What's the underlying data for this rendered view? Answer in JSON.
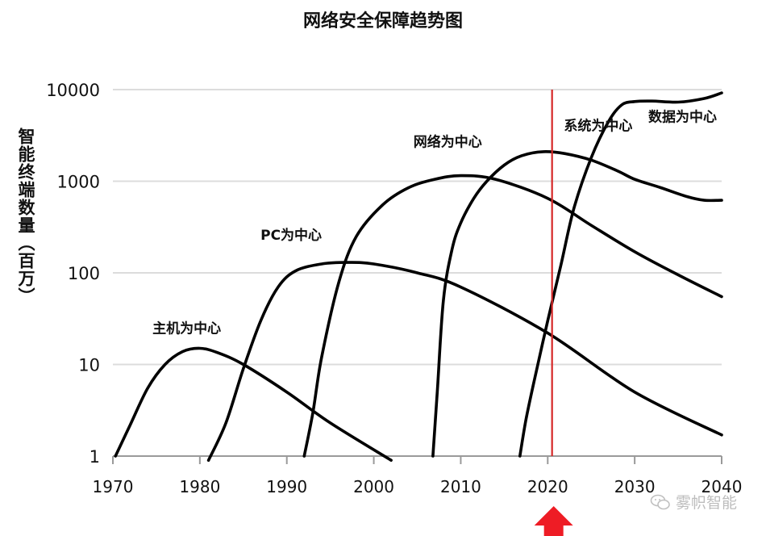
{
  "chart_data": {
    "type": "line",
    "title": "网络安全保障趋势图",
    "ylabel": "智能终端数量（百万）",
    "xlabel": "",
    "y_scale": "log",
    "xlim": [
      1970,
      2040
    ],
    "ylim": [
      1,
      10000
    ],
    "x_ticks": [
      "1970",
      "1980",
      "1990",
      "2000",
      "2010",
      "2020",
      "2030",
      "2040"
    ],
    "y_ticks": [
      "10000",
      "1000",
      "100",
      "10",
      "1"
    ],
    "grid": "horizontal",
    "marker_line": {
      "x": 2020.5,
      "color": "#d62828"
    },
    "arrow_color": "#ee1c25",
    "line_color": "#000000",
    "series": [
      {
        "name": "主机为中心",
        "x": [
          1970.3,
          1972,
          1974,
          1976,
          1978,
          1980,
          1982,
          1985,
          1990,
          1995,
          2002
        ],
        "y": [
          1,
          2.2,
          5.5,
          10,
          13.8,
          15,
          13.5,
          10,
          5,
          2.3,
          0.9
        ]
      },
      {
        "name": "PC为中心",
        "x": [
          1981,
          1983,
          1985,
          1987,
          1989,
          1991,
          1994,
          1997,
          2000,
          2005,
          2010,
          2020,
          2030,
          2040
        ],
        "y": [
          0.9,
          2.3,
          9,
          30,
          70,
          105,
          125,
          130,
          125,
          100,
          70,
          22,
          5,
          1.7
        ]
      },
      {
        "name": "网络为中心",
        "x": [
          1992,
          1993,
          1994,
          1996,
          1998,
          2001,
          2004,
          2007,
          2010,
          2014,
          2020,
          2025,
          2030,
          2035,
          2040
        ],
        "y": [
          1,
          3,
          12,
          80,
          250,
          550,
          850,
          1050,
          1150,
          1050,
          650,
          330,
          170,
          95,
          55
        ]
      },
      {
        "name": "系统为中心",
        "x": [
          2006.8,
          2007.3,
          2008,
          2009,
          2010,
          2011.5,
          2013,
          2015,
          2017,
          2019.5,
          2022,
          2025,
          2028,
          2030,
          2033,
          2036,
          2038,
          2040
        ],
        "y": [
          1,
          5,
          50,
          180,
          350,
          650,
          1000,
          1500,
          1900,
          2100,
          2000,
          1700,
          1300,
          1050,
          850,
          680,
          620,
          620
        ]
      },
      {
        "name": "数据为中心",
        "x": [
          2016.8,
          2017.5,
          2018.5,
          2020,
          2021.5,
          2023,
          2025,
          2027,
          2028.5,
          2030,
          2032,
          2035,
          2038,
          2040
        ],
        "y": [
          1,
          2.5,
          7,
          30,
          120,
          500,
          1800,
          4500,
          6800,
          7400,
          7500,
          7300,
          8000,
          9200
        ]
      }
    ],
    "annotations": [
      {
        "text": "主机为中心",
        "x": 1978.5,
        "y": 22
      },
      {
        "text": "PC为中心",
        "x": 1990.5,
        "y": 230
      },
      {
        "text": "网络为中心",
        "x": 2008.5,
        "y": 2400
      },
      {
        "text": "系统为中心",
        "x": 2025.8,
        "y": 3600
      },
      {
        "text": "数据为中心",
        "x": 2035.5,
        "y": 4500
      }
    ]
  },
  "watermark": {
    "text": "雾帜智能"
  }
}
